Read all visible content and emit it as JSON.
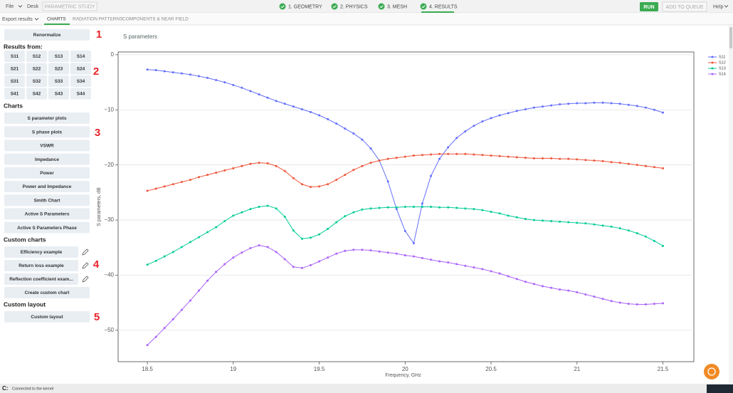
{
  "menu": {
    "items": [
      "File",
      "Desk"
    ],
    "parametric": "PARAMETRIC STUDY"
  },
  "steps": [
    "1. GEOMETRY",
    "2. PHYSICS",
    "3. MESH",
    "4. RESULTS"
  ],
  "actions": {
    "run": "RUN",
    "queue": "ADD TO QUEUE",
    "help": "Help"
  },
  "tabs": {
    "export": "Export results",
    "items": [
      "CHARTS",
      "RADIATION PATTERNS",
      "COMPONENTS & NEAR FIELD"
    ]
  },
  "sidebar": {
    "renormalize": "Renormalize",
    "results_heading": "Results from:",
    "ports": [
      [
        "S11",
        "S12",
        "S13",
        "S14"
      ],
      [
        "S21",
        "S22",
        "S23",
        "S24"
      ],
      [
        "S31",
        "S32",
        "S33",
        "S34"
      ],
      [
        "S41",
        "S42",
        "S43",
        "S44"
      ]
    ],
    "charts_heading": "Charts",
    "charts": [
      "S parameter plots",
      "S phase plots",
      "VSWR",
      "Impedance",
      "Power",
      "Power and Impedance",
      "Smith Chart",
      "Active S Parameters",
      "Active S Parameters Phase"
    ],
    "custom_heading": "Custom charts",
    "custom": [
      "Efficiency example",
      "Return loss example",
      "Reflection coefficient exam..."
    ],
    "create": "Create custom chart",
    "layout_heading": "Custom layout",
    "layout": [
      "Custom layout"
    ]
  },
  "callouts": [
    1,
    2,
    3,
    4,
    5
  ],
  "status": {
    "prefix": "C:",
    "text": "Connected to the kernel"
  },
  "chart_data": {
    "type": "line",
    "title": "S parameters",
    "x_label": "Frequency, GHz",
    "y_label": "S parameters, dB",
    "x": [
      18.5,
      18.55,
      18.6,
      18.65,
      18.7,
      18.75,
      18.8,
      18.85,
      18.9,
      18.95,
      19,
      19.05,
      19.1,
      19.15,
      19.2,
      19.25,
      19.3,
      19.35,
      19.4,
      19.45,
      19.5,
      19.55,
      19.6,
      19.65,
      19.7,
      19.75,
      19.8,
      19.85,
      19.9,
      19.95,
      20,
      20.05,
      20.1,
      20.15,
      20.2,
      20.25,
      20.3,
      20.35,
      20.4,
      20.45,
      20.5,
      20.55,
      20.6,
      20.65,
      20.7,
      20.75,
      20.8,
      20.85,
      20.9,
      20.95,
      21,
      21.05,
      21.1,
      21.15,
      21.2,
      21.25,
      21.3,
      21.35,
      21.4,
      21.45,
      21.5
    ],
    "series": [
      {
        "name": "S11",
        "color": "#636efa",
        "values": [
          -2.7,
          -2.8,
          -3.0,
          -3.2,
          -3.4,
          -3.6,
          -3.9,
          -4.2,
          -4.6,
          -5.0,
          -5.5,
          -6.0,
          -6.6,
          -7.2,
          -7.8,
          -8.4,
          -8.9,
          -9.4,
          -9.9,
          -10.4,
          -11.0,
          -11.7,
          -12.5,
          -13.4,
          -14.3,
          -15.4,
          -17.0,
          -19.2,
          -23.0,
          -28.0,
          -32.0,
          -34.2,
          -27.0,
          -22.0,
          -18.9,
          -16.8,
          -15.1,
          -13.9,
          -12.9,
          -12.1,
          -11.5,
          -11.0,
          -10.6,
          -10.2,
          -9.9,
          -9.6,
          -9.4,
          -9.2,
          -9.0,
          -8.9,
          -8.8,
          -8.8,
          -8.7,
          -8.7,
          -8.8,
          -8.9,
          -9.1,
          -9.3,
          -9.6,
          -10.0,
          -10.5
        ]
      },
      {
        "name": "S12",
        "color": "#ef553b",
        "values": [
          -24.7,
          -24.3,
          -23.9,
          -23.5,
          -23.1,
          -22.7,
          -22.2,
          -21.8,
          -21.4,
          -21.0,
          -20.6,
          -20.2,
          -19.8,
          -19.6,
          -19.7,
          -20.2,
          -21.1,
          -22.4,
          -23.5,
          -24.0,
          -23.9,
          -23.5,
          -22.7,
          -21.8,
          -20.9,
          -20.2,
          -19.6,
          -19.2,
          -18.9,
          -18.7,
          -18.5,
          -18.3,
          -18.2,
          -18.1,
          -18.0,
          -18.0,
          -18.0,
          -18.0,
          -18.1,
          -18.2,
          -18.3,
          -18.4,
          -18.5,
          -18.6,
          -18.7,
          -18.8,
          -18.8,
          -18.8,
          -18.9,
          -18.9,
          -19.0,
          -19.1,
          -19.2,
          -19.3,
          -19.5,
          -19.6,
          -19.8,
          -20.0,
          -20.2,
          -20.4,
          -20.6
        ]
      },
      {
        "name": "S13",
        "color": "#00cc96",
        "values": [
          -38.1,
          -37.4,
          -36.6,
          -35.8,
          -34.9,
          -34.0,
          -33.1,
          -32.2,
          -31.3,
          -30.2,
          -29.2,
          -28.6,
          -28.0,
          -27.6,
          -27.4,
          -27.9,
          -29.4,
          -31.9,
          -33.4,
          -33.2,
          -32.6,
          -31.6,
          -30.4,
          -29.3,
          -28.6,
          -28.1,
          -27.9,
          -27.8,
          -27.7,
          -27.7,
          -27.6,
          -27.6,
          -27.6,
          -27.6,
          -27.7,
          -27.7,
          -27.8,
          -27.9,
          -28.0,
          -28.2,
          -28.5,
          -28.8,
          -29.2,
          -29.5,
          -29.8,
          -30.0,
          -30.1,
          -30.2,
          -30.3,
          -30.4,
          -30.5,
          -30.6,
          -30.8,
          -31.0,
          -31.2,
          -31.5,
          -31.9,
          -32.4,
          -33.0,
          -33.8,
          -34.7
        ]
      },
      {
        "name": "S14",
        "color": "#ab63fa",
        "values": [
          -52.7,
          -51.2,
          -49.6,
          -48.0,
          -46.3,
          -44.6,
          -42.8,
          -41.0,
          -39.4,
          -38.0,
          -36.8,
          -35.9,
          -35.1,
          -34.6,
          -34.9,
          -35.8,
          -37.1,
          -38.5,
          -38.7,
          -38.2,
          -37.5,
          -36.8,
          -36.1,
          -35.6,
          -35.4,
          -35.4,
          -35.5,
          -35.7,
          -35.9,
          -36.1,
          -36.4,
          -36.6,
          -36.9,
          -37.2,
          -37.5,
          -37.7,
          -38.0,
          -38.3,
          -38.6,
          -38.9,
          -39.3,
          -39.7,
          -40.2,
          -40.7,
          -41.2,
          -41.6,
          -42.0,
          -42.3,
          -42.6,
          -42.8,
          -43.1,
          -43.5,
          -43.9,
          -44.3,
          -44.7,
          -45.0,
          -45.2,
          -45.3,
          -45.3,
          -45.2,
          -45.1
        ]
      }
    ],
    "xlim": [
      18.33,
      21.68
    ],
    "ylim": [
      -55.7,
      0.5
    ],
    "xticks": [
      18.5,
      19,
      19.5,
      20,
      20.5,
      21,
      21.5
    ],
    "yticks": [
      0,
      {
        "value": -10,
        "label": "−10"
      },
      {
        "value": -20,
        "label": "−20"
      },
      {
        "value": -30,
        "label": "−30"
      },
      {
        "value": -40,
        "label": "−40"
      },
      {
        "value": -50,
        "label": "−50"
      }
    ],
    "grid": true,
    "legend": "top-right"
  }
}
